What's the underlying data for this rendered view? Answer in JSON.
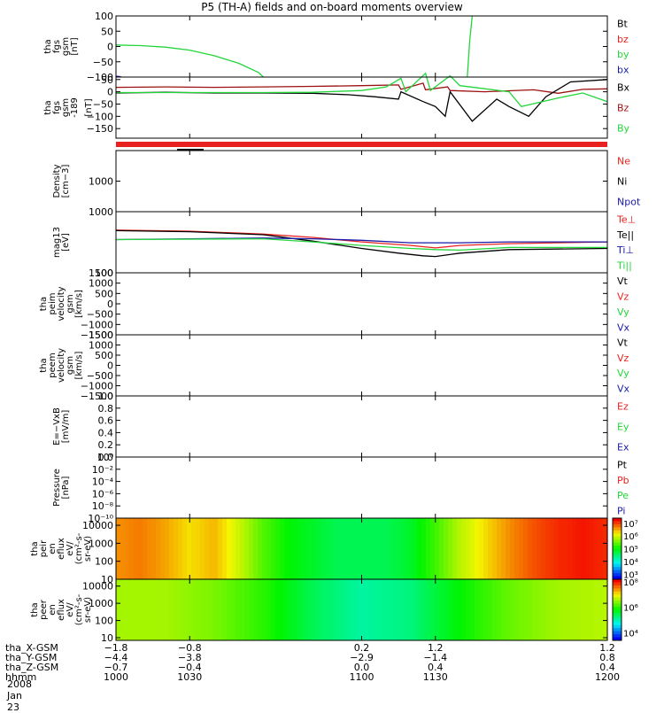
{
  "title": "P5 (TH-A) fields and on-board moments overview",
  "date_label": "2008 Jan 23",
  "colors": {
    "red": "#e8231f",
    "green": "#22d63a",
    "blue": "#1a1aa8",
    "darkred": "#9b1010",
    "black": "#000000"
  },
  "chart_data": [
    {
      "type": "line",
      "ylabel_lines": [
        "tha",
        "fgs",
        "gsm",
        "[nT]"
      ],
      "ylim": [
        -100,
        100
      ],
      "ticks": [
        "100",
        "50",
        "0",
        "−50",
        "−100"
      ],
      "tick_values": [
        100,
        50,
        0,
        -50,
        -100
      ],
      "legend": [
        {
          "name": "Bt",
          "color": "black"
        },
        {
          "name": "bz",
          "color": "red"
        },
        {
          "name": "by",
          "color": "green"
        },
        {
          "name": "bx",
          "color": "blue"
        }
      ],
      "series": [
        {
          "name": "by",
          "color": "green",
          "x": [
            1000,
            1010,
            1020,
            1030,
            1040,
            1050,
            1058,
            1060
          ],
          "y": [
            5,
            3,
            -2,
            -12,
            -30,
            -55,
            -85,
            -100
          ]
        },
        {
          "name": "by",
          "color": "green",
          "x": [
            1143,
            1144,
            1145
          ],
          "y": [
            -100,
            20,
            100
          ]
        },
        {
          "name": "bx",
          "color": "blue",
          "x": [
            1000,
            1002
          ],
          "y": [
            -97,
            -99
          ]
        }
      ]
    },
    {
      "type": "line",
      "ylabel_lines": [
        "tha",
        "fgs",
        "gsm",
        "-189"
      ],
      "ylabel2": "[nT]",
      "ylim": [
        -189,
        60
      ],
      "ticks": [
        "50",
        "0",
        "−50",
        "−100",
        "−150"
      ],
      "tick_values": [
        50,
        0,
        -50,
        -100,
        -150
      ],
      "legend": [
        {
          "name": "Bx",
          "color": "black"
        },
        {
          "name": "Bz",
          "color": "darkred"
        },
        {
          "name": "By",
          "color": "green"
        }
      ],
      "series": [
        {
          "name": "Bz",
          "color": "darkred",
          "x": [
            1000,
            1020,
            1040,
            1060,
            1080,
            1100,
            1115,
            1116,
            1125,
            1126,
            1135,
            1136,
            1150,
            1170,
            1180,
            1190,
            1200
          ],
          "y": [
            18,
            20,
            18,
            20,
            22,
            25,
            28,
            10,
            35,
            8,
            20,
            5,
            0,
            8,
            -6,
            10,
            12
          ]
        },
        {
          "name": "Bx",
          "color": "black",
          "x": [
            1000,
            1020,
            1040,
            1060,
            1080,
            1095,
            1105,
            1115,
            1116,
            1125,
            1130,
            1134,
            1136,
            1145,
            1155,
            1160,
            1168,
            1175,
            1185,
            1200
          ],
          "y": [
            -5,
            -2,
            -5,
            -5,
            -6,
            -12,
            -20,
            -30,
            0,
            -40,
            -60,
            -100,
            0,
            -120,
            -30,
            -60,
            -100,
            -20,
            40,
            50
          ]
        },
        {
          "name": "By",
          "color": "green",
          "x": [
            1000,
            1020,
            1040,
            1060,
            1080,
            1100,
            1110,
            1116,
            1118,
            1126,
            1128,
            1136,
            1140,
            1160,
            1165,
            1180,
            1190,
            1200
          ],
          "y": [
            -3,
            -3,
            -3,
            -3,
            -2,
            5,
            20,
            55,
            0,
            75,
            5,
            65,
            25,
            0,
            -60,
            -25,
            -5,
            -40
          ]
        }
      ]
    },
    {
      "type": "line",
      "ylabel_lines": [
        "Density",
        "[cm−3]"
      ],
      "ylim": [
        0,
        2000
      ],
      "ticks": [
        "1000"
      ],
      "tick_values": [
        1000
      ],
      "legend": [
        {
          "name": "Ne",
          "color": "red"
        },
        {
          "name": "Ni",
          "color": "black"
        },
        {
          "name": "Npot",
          "color": "blue"
        }
      ],
      "series": []
    },
    {
      "type": "line",
      "ylabel_lines": [
        "mag13",
        "[eV]"
      ],
      "yscale": "log",
      "ylim": [
        100,
        1000
      ],
      "ticks": [
        "1000",
        "100"
      ],
      "tick_values": [
        1000,
        100
      ],
      "legend": [
        {
          "name": "Te⊥",
          "color": "red"
        },
        {
          "name": "Te||",
          "color": "black"
        },
        {
          "name": "Ti⊥",
          "color": "blue"
        },
        {
          "name": "Ti||",
          "color": "green"
        }
      ],
      "series": [
        {
          "name": "Te⊥",
          "color": "red",
          "x": [
            1000,
            1030,
            1060,
            1080,
            1100,
            1120,
            1130,
            1140,
            1160,
            1200
          ],
          "y": [
            500,
            480,
            430,
            380,
            320,
            280,
            255,
            280,
            300,
            320
          ]
        },
        {
          "name": "Te||",
          "color": "black",
          "x": [
            1000,
            1030,
            1060,
            1080,
            1100,
            1115,
            1125,
            1130,
            1140,
            1160,
            1200
          ],
          "y": [
            490,
            470,
            420,
            330,
            250,
            210,
            190,
            185,
            210,
            240,
            250
          ]
        },
        {
          "name": "Ti⊥",
          "color": "blue",
          "x": [
            1000,
            1030,
            1060,
            1080,
            1100,
            1120,
            1140,
            1160,
            1200
          ],
          "y": [
            350,
            360,
            370,
            360,
            340,
            310,
            310,
            320,
            320
          ]
        },
        {
          "name": "Ti||",
          "color": "green",
          "x": [
            1000,
            1060,
            1080,
            1100,
            1120,
            1130,
            1140,
            1160,
            1200
          ],
          "y": [
            350,
            360,
            320,
            280,
            250,
            240,
            235,
            260,
            260
          ]
        }
      ]
    },
    {
      "type": "line",
      "ylabel_lines": [
        "tha",
        "peim",
        "velocity",
        "gsm",
        "[km/s]"
      ],
      "ylim": [
        -1500,
        1500
      ],
      "ticks": [
        "1500",
        "1000",
        "500",
        "0",
        "−500",
        "−1000",
        "−1500"
      ],
      "tick_values": [
        1500,
        1000,
        500,
        0,
        -500,
        -1000,
        -1500
      ],
      "legend": [
        {
          "name": "Vt",
          "color": "black"
        },
        {
          "name": "Vz",
          "color": "red"
        },
        {
          "name": "Vy",
          "color": "green"
        },
        {
          "name": "Vx",
          "color": "blue"
        }
      ],
      "series": []
    },
    {
      "type": "line",
      "ylabel_lines": [
        "tha",
        "peem",
        "velocity",
        "gsm",
        "[km/s]"
      ],
      "ylim": [
        -1500,
        1500
      ],
      "ticks": [
        "1500",
        "1000",
        "500",
        "0",
        "−500",
        "−1000",
        "−1500"
      ],
      "tick_values": [
        1500,
        1000,
        500,
        0,
        -500,
        -1000,
        -1500
      ],
      "legend": [
        {
          "name": "Vt",
          "color": "black"
        },
        {
          "name": "Vz",
          "color": "red"
        },
        {
          "name": "Vy",
          "color": "green"
        },
        {
          "name": "Vx",
          "color": "blue"
        }
      ],
      "series": []
    },
    {
      "type": "line",
      "ylabel_lines": [
        "E=−VxB",
        "[mV/m]"
      ],
      "ylim": [
        0,
        1
      ],
      "ticks": [
        "1.0",
        "0.8",
        "0.6",
        "0.4",
        "0.2",
        "0.0"
      ],
      "tick_values": [
        1,
        0.8,
        0.6,
        0.4,
        0.2,
        0
      ],
      "legend": [
        {
          "name": "Ez",
          "color": "red"
        },
        {
          "name": "Ey",
          "color": "green"
        },
        {
          "name": "Ex",
          "color": "blue"
        }
      ],
      "series": []
    },
    {
      "type": "line",
      "ylabel_lines": [
        "Pressure",
        "[nPa]"
      ],
      "yscale": "log",
      "ylim": [
        1e-10,
        1
      ],
      "ticks": [
        "10⁰",
        "10⁻²",
        "10⁻⁴",
        "10⁻⁶",
        "10⁻⁸",
        "10⁻¹⁰"
      ],
      "tick_values": [
        1,
        0.01,
        0.0001,
        1e-06,
        1e-08,
        1e-10
      ],
      "legend": [
        {
          "name": "Pt",
          "color": "black"
        },
        {
          "name": "Pb",
          "color": "red"
        },
        {
          "name": "Pe",
          "color": "green"
        },
        {
          "name": "Pi",
          "color": "blue"
        }
      ],
      "series": []
    },
    {
      "type": "heatmap",
      "ylabel_lines": [
        "tha",
        "peir",
        "en",
        "eflux",
        "eV/",
        "(cm²-s-",
        "sr-eV)"
      ],
      "yscale": "log",
      "ylim": [
        10,
        25000
      ],
      "ticks": [
        "10000",
        "1000",
        "100",
        "10"
      ],
      "tick_values": [
        10000,
        1000,
        100,
        10
      ],
      "colorbar_ticks": [
        "10⁷",
        "10⁶",
        "10⁵",
        "10⁴",
        "10³"
      ],
      "colorbar_values": [
        7,
        6,
        5,
        4,
        3
      ],
      "colorbar_range": [
        2.6,
        7.4
      ],
      "log_flux_by_time": {
        "x": [
          1000,
          1010,
          1020,
          1030,
          1040,
          1050,
          1060,
          1070,
          1080,
          1090,
          1100,
          1110,
          1120,
          1130,
          1140,
          1150,
          1160,
          1170,
          1180,
          1190,
          1200
        ],
        "v": [
          6.7,
          6.8,
          6.6,
          6.3,
          6.5,
          6.0,
          5.4,
          5.0,
          4.8,
          4.6,
          4.6,
          4.6,
          4.8,
          5.3,
          5.9,
          6.3,
          6.7,
          7.0,
          7.2,
          7.3,
          7.2
        ]
      }
    },
    {
      "type": "heatmap",
      "ylabel_lines": [
        "tha",
        "peer",
        "en",
        "eflux",
        "eV/",
        "(cm²-s-",
        "sr-eV)"
      ],
      "yscale": "log",
      "ylim": [
        7,
        25000
      ],
      "ticks": [
        "10000",
        "1000",
        "100",
        "10"
      ],
      "tick_values": [
        10000,
        1000,
        100,
        10
      ],
      "colorbar_ticks": [
        "10⁸",
        "10⁶",
        "10⁴"
      ],
      "colorbar_values": [
        8,
        6,
        4
      ],
      "colorbar_range": [
        3.4,
        8.2
      ],
      "log_flux_by_time": {
        "x": [
          1000,
          1020,
          1040,
          1060,
          1080,
          1100,
          1120,
          1140,
          1160,
          1180,
          1200
        ],
        "v": [
          6.6,
          6.6,
          6.4,
          6.0,
          5.4,
          5.0,
          5.2,
          5.8,
          6.3,
          6.6,
          6.7
        ]
      }
    }
  ],
  "time_axis": {
    "range": [
      1000,
      1200
    ],
    "positions": [
      1000,
      1030,
      1100,
      1130,
      1200
    ],
    "rows": [
      {
        "label": "tha_X-GSM",
        "values": [
          "−1.8",
          "−0.8",
          "0.2",
          "1.2",
          "1.2"
        ]
      },
      {
        "label": "tha_Y-GSM",
        "values": [
          "−4.4",
          "−3.8",
          "−2.9",
          "−1.4",
          "0.8"
        ]
      },
      {
        "label": "tha_Z-GSM",
        "values": [
          "−0.7",
          "−0.4",
          "0.0",
          "0.4",
          "0.4"
        ]
      },
      {
        "label": "hhmm",
        "values": [
          "1000",
          "1030",
          "1100",
          "1130",
          "1200"
        ]
      }
    ]
  }
}
